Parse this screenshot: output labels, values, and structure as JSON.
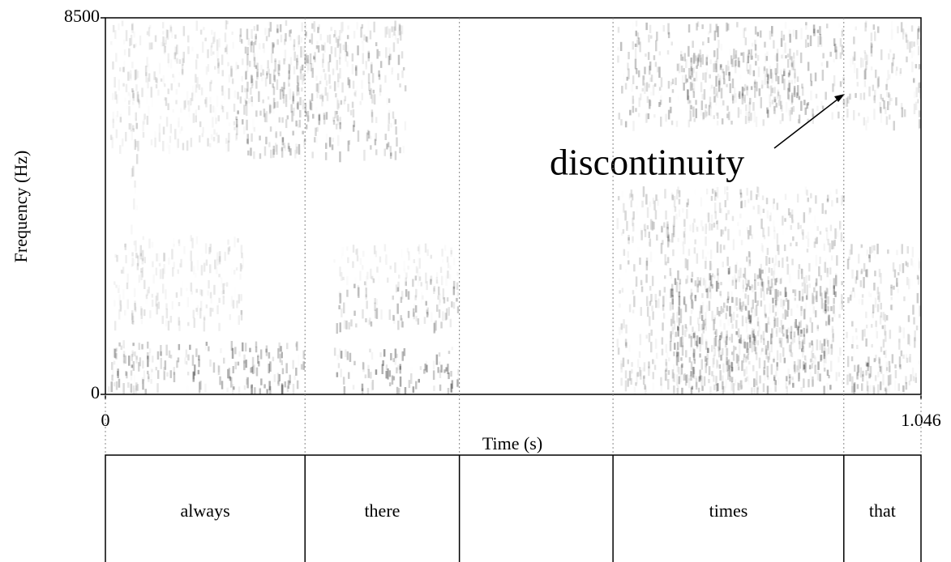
{
  "chart_data": {
    "type": "spectrogram",
    "xlabel": "Time (s)",
    "ylabel": "Frequency (Hz)",
    "xlim": [
      0,
      1.046
    ],
    "ylim": [
      0,
      8500
    ],
    "xticks": [
      0,
      1.046
    ],
    "yticks": [
      0,
      8500
    ],
    "annotation": "discontinuity",
    "tier": {
      "labels": [
        "always",
        "there",
        null,
        "times",
        "that"
      ],
      "boundaries": [
        0.256,
        0.454,
        0.651,
        0.947
      ]
    }
  }
}
